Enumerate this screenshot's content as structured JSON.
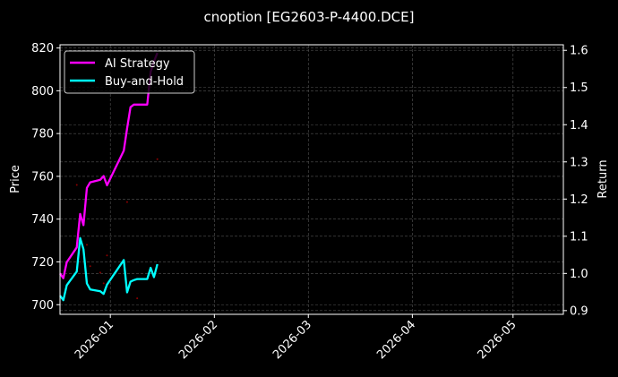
{
  "chart_data": {
    "type": "line",
    "title": "cnoption [EG2603-P-4400.DCE]",
    "ylabel": "Price",
    "y2label": "Return",
    "ylim": [
      695.5,
      821.5
    ],
    "y2lim": [
      0.89,
      1.615
    ],
    "xlim": [
      "2025-12-17",
      "2026-05-16"
    ],
    "yticks": [
      700,
      720,
      740,
      760,
      780,
      800,
      820
    ],
    "y2ticks": [
      "0.9",
      "1.0",
      "1.1",
      "1.2",
      "1.3",
      "1.4",
      "1.5",
      "1.6"
    ],
    "xticks": [
      "2026-01",
      "2026-02",
      "2026-03",
      "2026-04",
      "2026-05"
    ],
    "xtick_dates": [
      "2026-01-01",
      "2026-02-01",
      "2026-03-01",
      "2026-04-01",
      "2026-05-01"
    ],
    "grid": true,
    "legend": "top-left",
    "x": [
      "2025-12-17",
      "2025-12-18",
      "2025-12-19",
      "2025-12-22",
      "2025-12-23",
      "2025-12-24",
      "2025-12-25",
      "2025-12-26",
      "2025-12-29",
      "2025-12-30",
      "2025-12-31",
      "2026-01-05",
      "2026-01-06",
      "2026-01-07",
      "2026-01-08",
      "2026-01-09",
      "2026-01-12",
      "2026-01-13",
      "2026-01-14",
      "2026-01-15"
    ],
    "series": [
      {
        "name": "AI Strategy",
        "axis": "right",
        "color": "#ff00ff",
        "values": [
          1.0,
          0.987,
          1.03,
          1.07,
          1.16,
          1.13,
          1.23,
          1.245,
          1.252,
          1.262,
          1.237,
          1.33,
          1.39,
          1.447,
          1.454,
          1.454,
          1.454,
          1.542,
          1.57,
          1.593
        ]
      },
      {
        "name": "Buy-and-Hold",
        "axis": "right",
        "color": "#00ffff",
        "values": [
          0.94,
          0.928,
          0.968,
          1.005,
          1.095,
          1.065,
          0.973,
          0.957,
          0.952,
          0.945,
          0.97,
          1.036,
          0.949,
          0.978,
          0.982,
          0.985,
          0.985,
          1.015,
          0.99,
          1.025
        ]
      }
    ],
    "price_points": {
      "axis": "left",
      "color": "#8b0000",
      "x": [
        "2025-12-22",
        "2025-12-25",
        "2025-12-26",
        "2025-12-29",
        "2025-12-30",
        "2025-12-31",
        "2026-01-06",
        "2026-01-09",
        "2026-01-15"
      ],
      "values": [
        756,
        728,
        718,
        715,
        710,
        723,
        748,
        703,
        768
      ]
    }
  }
}
